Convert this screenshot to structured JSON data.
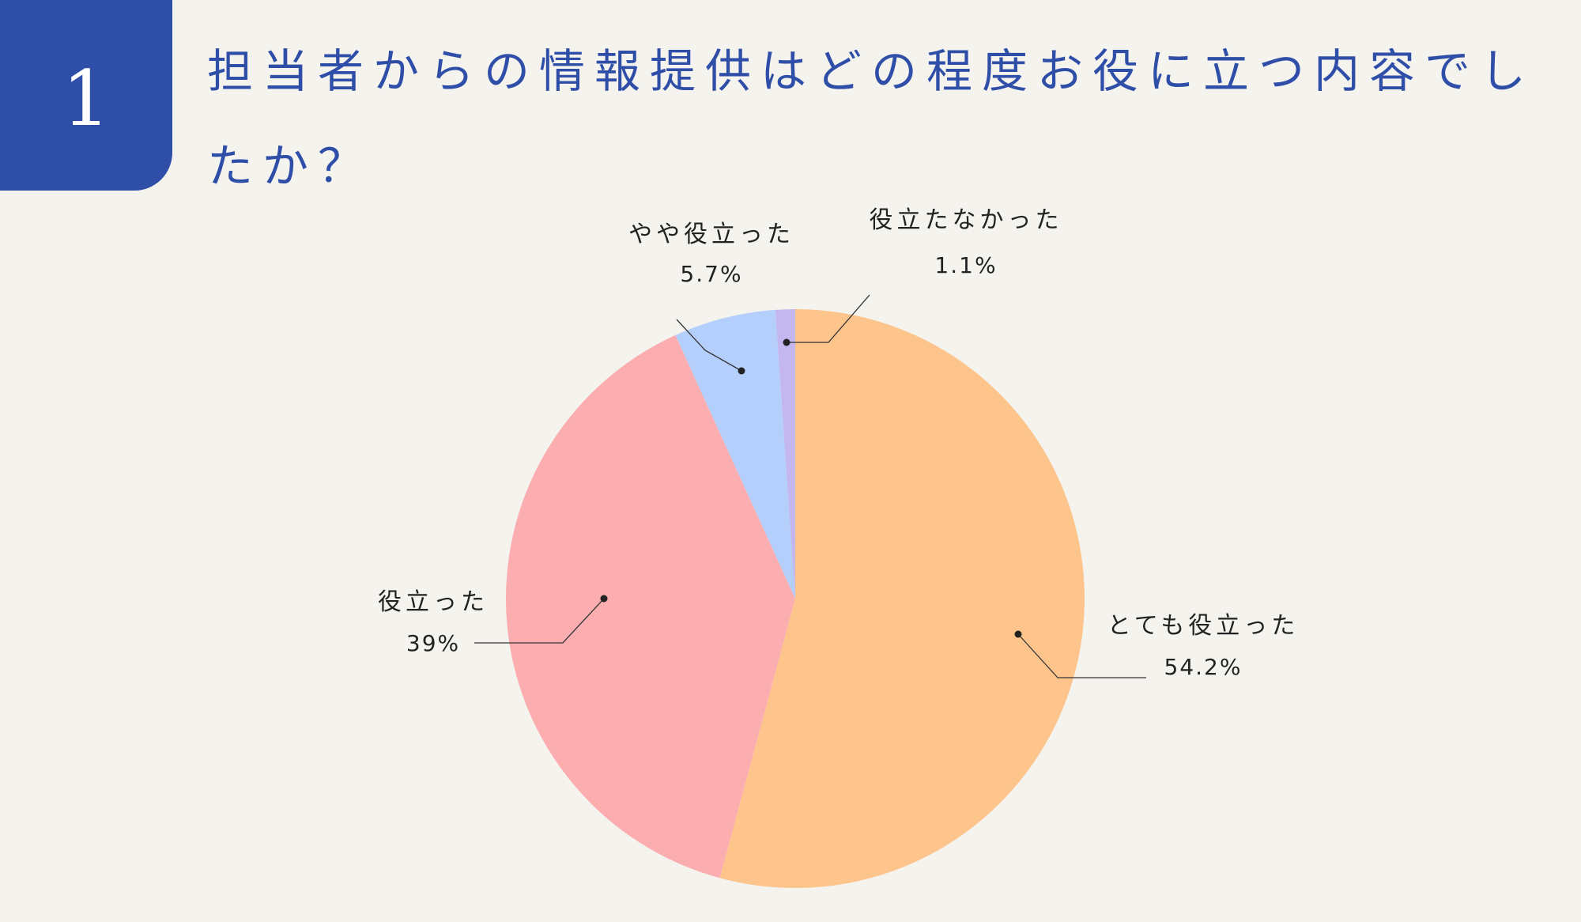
{
  "header": {
    "number": "1",
    "title": "担当者からの情報提供はどの程度お役に立つ内容でしたか？"
  },
  "colors": {
    "badge": "#2f4ea8",
    "background": "#f5f3ee",
    "title": "#2f4ea8"
  },
  "chart_data": {
    "type": "pie",
    "title": "担当者からの情報提供はどの程度お役に立つ内容でしたか？",
    "slices": [
      {
        "label": "とても役立った",
        "value": 54.2,
        "display": "54.2%",
        "color": "#fdc48c"
      },
      {
        "label": "役立った",
        "value": 39,
        "display": "39%",
        "color": "#fbadb0"
      },
      {
        "label": "やや役立った",
        "value": 5.7,
        "display": "5.7%",
        "color": "#b5cffd"
      },
      {
        "label": "役立たなかった",
        "value": 1.1,
        "display": "1.1%",
        "color": "#c4b6ef"
      }
    ],
    "start_angle_deg": 0,
    "direction": "clockwise",
    "legend": "none"
  }
}
